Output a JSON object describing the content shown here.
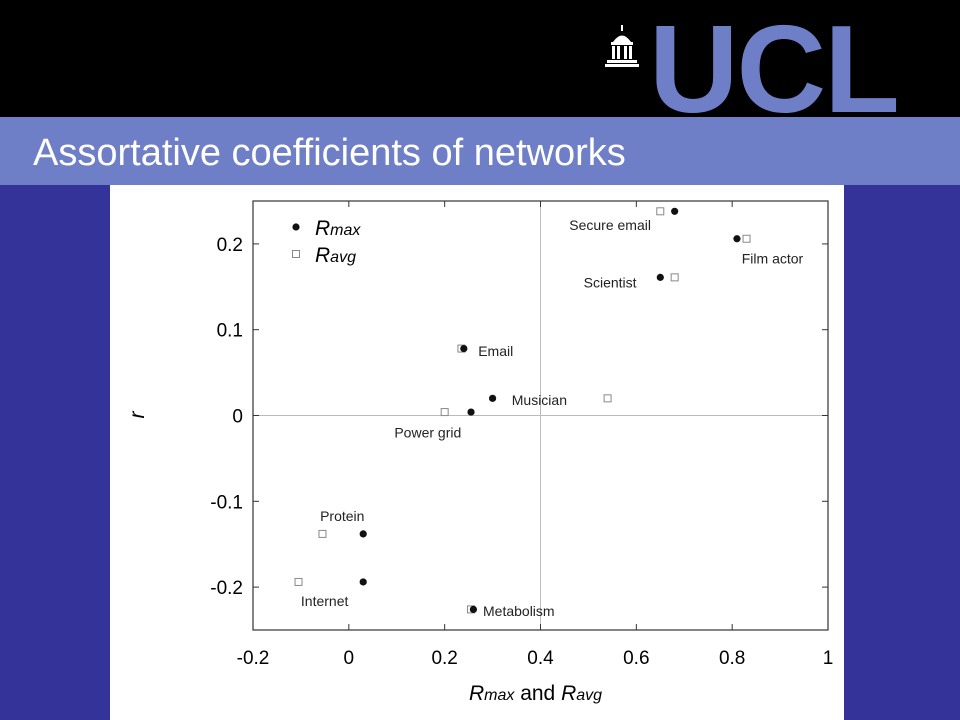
{
  "header": {
    "title": "Assortative coefficients of networks",
    "logo_text": "UCL",
    "logo_icon": "ucl-portico-dome-icon"
  },
  "colors": {
    "background": "#333399",
    "title_bar": "#6f7fc7",
    "top_bar": "#000000",
    "logo": "#6f7fc7",
    "title_text": "#ffffff"
  },
  "chart_data": {
    "type": "scatter",
    "xlabel": "Rmax and Ravg",
    "ylabel": "r",
    "xlim": [
      -0.2,
      1
    ],
    "ylim": [
      -0.25,
      0.25
    ],
    "xticks": [
      "-0.2",
      "0",
      "0.2",
      "0.4",
      "0.6",
      "0.8",
      "1"
    ],
    "xtick_values": [
      -0.2,
      0,
      0.2,
      0.4,
      0.6,
      0.8,
      1
    ],
    "yticks": [
      "0.2",
      "0.1",
      "0",
      "-0.1",
      "-0.2"
    ],
    "ytick_values": [
      0.2,
      0.1,
      0,
      -0.1,
      -0.2
    ],
    "reference_lines": {
      "x": 0.4,
      "y": 0
    },
    "legend": [
      {
        "main": "R",
        "sub": "max",
        "marker": "filled-circle"
      },
      {
        "main": "R",
        "sub": "avg",
        "marker": "open-square"
      }
    ],
    "legend_position": "top-left",
    "series": [
      {
        "key": "Rmax",
        "marker": "filled-circle",
        "points": [
          {
            "label": "Secure email",
            "x": 0.68,
            "y": 0.238
          },
          {
            "label": "Film actor",
            "x": 0.81,
            "y": 0.206
          },
          {
            "label": "Scientist",
            "x": 0.65,
            "y": 0.161
          },
          {
            "label": "Email",
            "x": 0.24,
            "y": 0.078
          },
          {
            "label": "Musician",
            "x": 0.3,
            "y": 0.02
          },
          {
            "label": "Power grid",
            "x": 0.255,
            "y": 0.004
          },
          {
            "label": "Protein",
            "x": 0.03,
            "y": -0.138
          },
          {
            "label": "Internet",
            "x": 0.03,
            "y": -0.194
          },
          {
            "label": "Metabolism",
            "x": 0.26,
            "y": -0.226
          }
        ]
      },
      {
        "key": "Ravg",
        "marker": "open-square",
        "points": [
          {
            "label": "Secure email",
            "x": 0.65,
            "y": 0.238
          },
          {
            "label": "Film actor",
            "x": 0.83,
            "y": 0.206
          },
          {
            "label": "Scientist",
            "x": 0.68,
            "y": 0.161
          },
          {
            "label": "Email",
            "x": 0.235,
            "y": 0.078
          },
          {
            "label": "Musician",
            "x": 0.54,
            "y": 0.02
          },
          {
            "label": "Power grid",
            "x": 0.2,
            "y": 0.004
          },
          {
            "label": "Protein",
            "x": -0.055,
            "y": -0.138
          },
          {
            "label": "Internet",
            "x": -0.105,
            "y": -0.194
          },
          {
            "label": "Metabolism",
            "x": 0.255,
            "y": -0.226
          }
        ]
      }
    ],
    "annotations": [
      {
        "text": "Secure email",
        "x": 0.46,
        "y": 0.222
      },
      {
        "text": "Film actor",
        "x": 0.82,
        "y": 0.183
      },
      {
        "text": "Scientist",
        "x": 0.49,
        "y": 0.155
      },
      {
        "text": "Email",
        "x": 0.27,
        "y": 0.075
      },
      {
        "text": "Musician",
        "x": 0.34,
        "y": 0.018
      },
      {
        "text": "Power grid",
        "x": 0.095,
        "y": -0.02
      },
      {
        "text": "Protein",
        "x": -0.06,
        "y": -0.117
      },
      {
        "text": "Internet",
        "x": -0.1,
        "y": -0.216
      },
      {
        "text": "Metabolism",
        "x": 0.28,
        "y": -0.228
      }
    ]
  }
}
